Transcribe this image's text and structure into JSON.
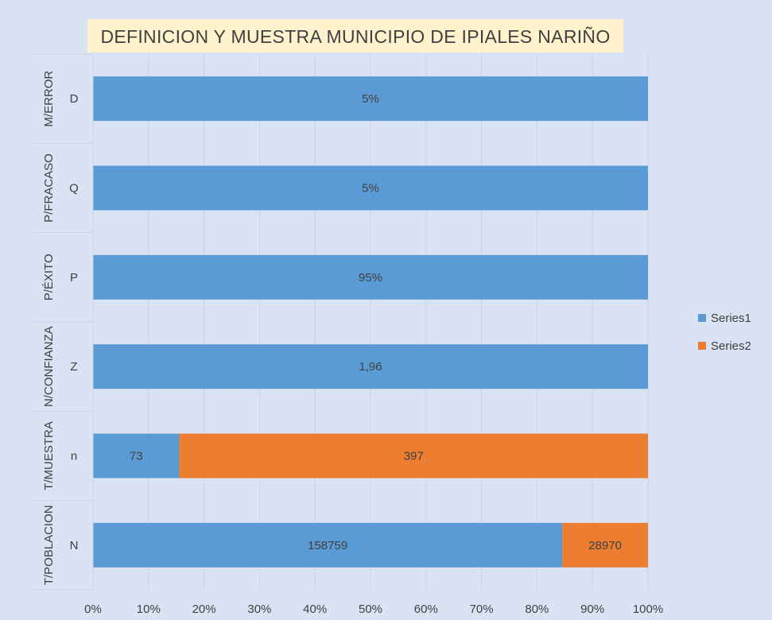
{
  "chart_data": {
    "type": "bar",
    "orientation": "horizontal",
    "stacking": "percent",
    "title": "DEFINICION  Y MUESTRA MUNICIPIO DE IPIALES NARIÑO",
    "categories": [
      {
        "group": "M/ERROR",
        "label": "D"
      },
      {
        "group": "P/FRACASO",
        "label": "Q"
      },
      {
        "group": "P/ÉXITO",
        "label": "P"
      },
      {
        "group": "N/CONFIANZA",
        "label": "Z"
      },
      {
        "group": "T/MUESTRA",
        "label": "n"
      },
      {
        "group": "T/POBLACION",
        "label": "N"
      }
    ],
    "series": [
      {
        "name": "Series1",
        "color": "#5b9bd5",
        "values": [
          0.05,
          0.05,
          0.95,
          1.96,
          73,
          158759
        ],
        "labels": [
          "5%",
          "5%",
          "95%",
          "1,96",
          "73",
          "158759"
        ]
      },
      {
        "name": "Series2",
        "color": "#ed7d31",
        "values": [
          0,
          0,
          0,
          0,
          397,
          28970
        ],
        "labels": [
          "",
          "",
          "",
          "",
          "397",
          "28970"
        ]
      }
    ],
    "x_ticks": [
      "0%",
      "10%",
      "20%",
      "30%",
      "40%",
      "50%",
      "60%",
      "70%",
      "80%",
      "90%",
      "100%"
    ],
    "xlim": [
      0,
      1
    ],
    "grid": true,
    "legend_position": "right"
  }
}
